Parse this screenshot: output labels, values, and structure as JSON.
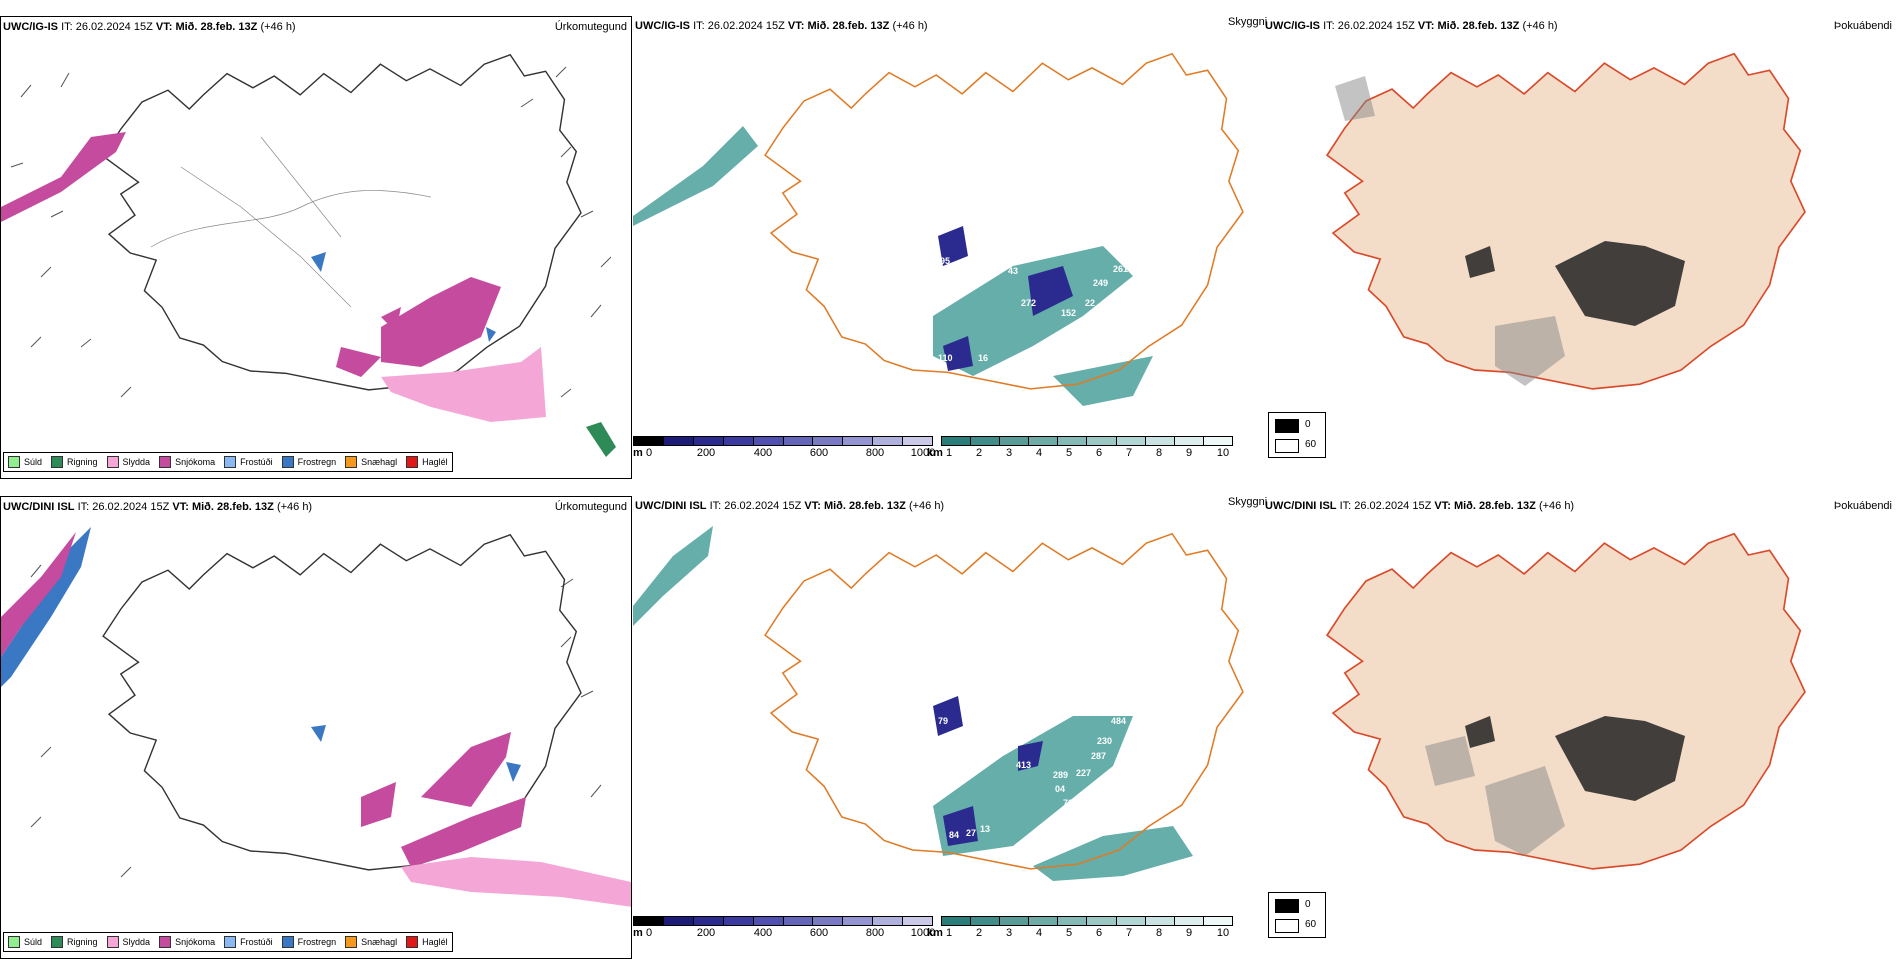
{
  "rows": [
    {
      "id": "ig",
      "model": "UWC/IG-IS",
      "it_label": "IT:",
      "it_value": "26.02.2024 15Z",
      "vt_label": "VT:",
      "vt_value": "Mið. 28.feb. 13Z",
      "lead": "(+46 h)"
    },
    {
      "id": "dini",
      "model": "UWC/DINI ISL",
      "it_label": "IT:",
      "it_value": "26.02.2024 15Z",
      "vt_label": "VT:",
      "vt_value": "Mið. 28.feb. 13Z",
      "lead": "(+46 h)"
    }
  ],
  "panel_titles": {
    "precip_type": "Úrkomutegund",
    "visibility": "Skyggni",
    "fog": "Þokuábendi"
  },
  "precip_legend": [
    {
      "label": "Súld",
      "color": "#90ee90"
    },
    {
      "label": "Rigning",
      "color": "#2e8b57"
    },
    {
      "label": "Slydda",
      "color": "#f4a6d7"
    },
    {
      "label": "Snjókoma",
      "color": "#c44b9e"
    },
    {
      "label": "Frostúði",
      "color": "#8ab8f0"
    },
    {
      "label": "Frostregn",
      "color": "#3a78c4"
    },
    {
      "label": "Snæhagl",
      "color": "#f39a1e"
    },
    {
      "label": "Haglél",
      "color": "#e01818"
    }
  ],
  "cloudbase_bar": {
    "unit": "m",
    "ticks": [
      "0",
      "200",
      "400",
      "600",
      "800",
      "1000"
    ],
    "colors": [
      "#000000",
      "#1c1c78",
      "#2b2b8f",
      "#3a3aa0",
      "#5050b0",
      "#6464b8",
      "#7a7ac4",
      "#9494d0",
      "#b0b0dc",
      "#cacae8"
    ]
  },
  "visibility_bar": {
    "unit": "km",
    "ticks": [
      "1",
      "2",
      "3",
      "4",
      "5",
      "6",
      "7",
      "8",
      "9",
      "10"
    ],
    "colors": [
      "#2a7e7a",
      "#3f8d88",
      "#579c97",
      "#6eaba6",
      "#85bab6",
      "#9cc8c4",
      "#b2d6d3",
      "#c8e3e1",
      "#dcefee",
      "#eef8f7"
    ]
  },
  "fog_legend": [
    {
      "label": "0",
      "color": "#000000"
    },
    {
      "label": "60",
      "color": "#ffffff"
    }
  ],
  "cloudbase_labels_top": [
    "95",
    "43",
    "272",
    "152",
    "22",
    "249",
    "261",
    "110",
    "16",
    "22"
  ],
  "cloudbase_labels_bottom": [
    "79",
    "70",
    "413",
    "289",
    "04",
    "227",
    "287",
    "230",
    "484",
    "84",
    "27",
    "13",
    "72"
  ]
}
